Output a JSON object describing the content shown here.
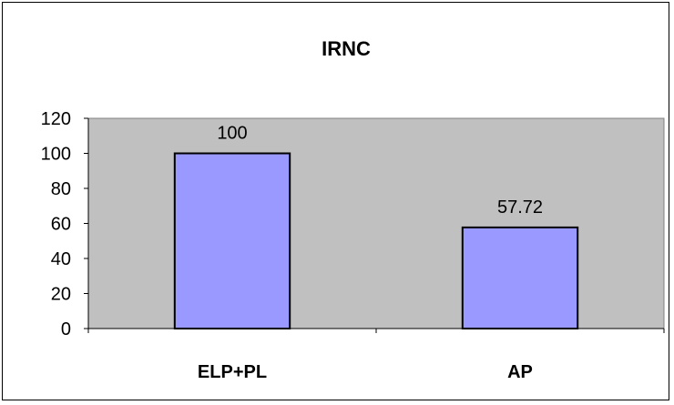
{
  "chart_data": {
    "type": "bar",
    "title": "IRNC",
    "categories": [
      "ELP+PL",
      "AP"
    ],
    "values": [
      100,
      57.72
    ],
    "data_labels": [
      "100",
      "57.72"
    ],
    "ylim": [
      0,
      120
    ],
    "yticks": [
      0,
      20,
      40,
      60,
      80,
      100,
      120
    ],
    "xlabel": "",
    "ylabel": "",
    "grid": false,
    "legend": "none",
    "colors": {
      "plot_background": "#c0c0c0",
      "bar_fill": "#9999ff",
      "bar_stroke": "#000000"
    }
  }
}
